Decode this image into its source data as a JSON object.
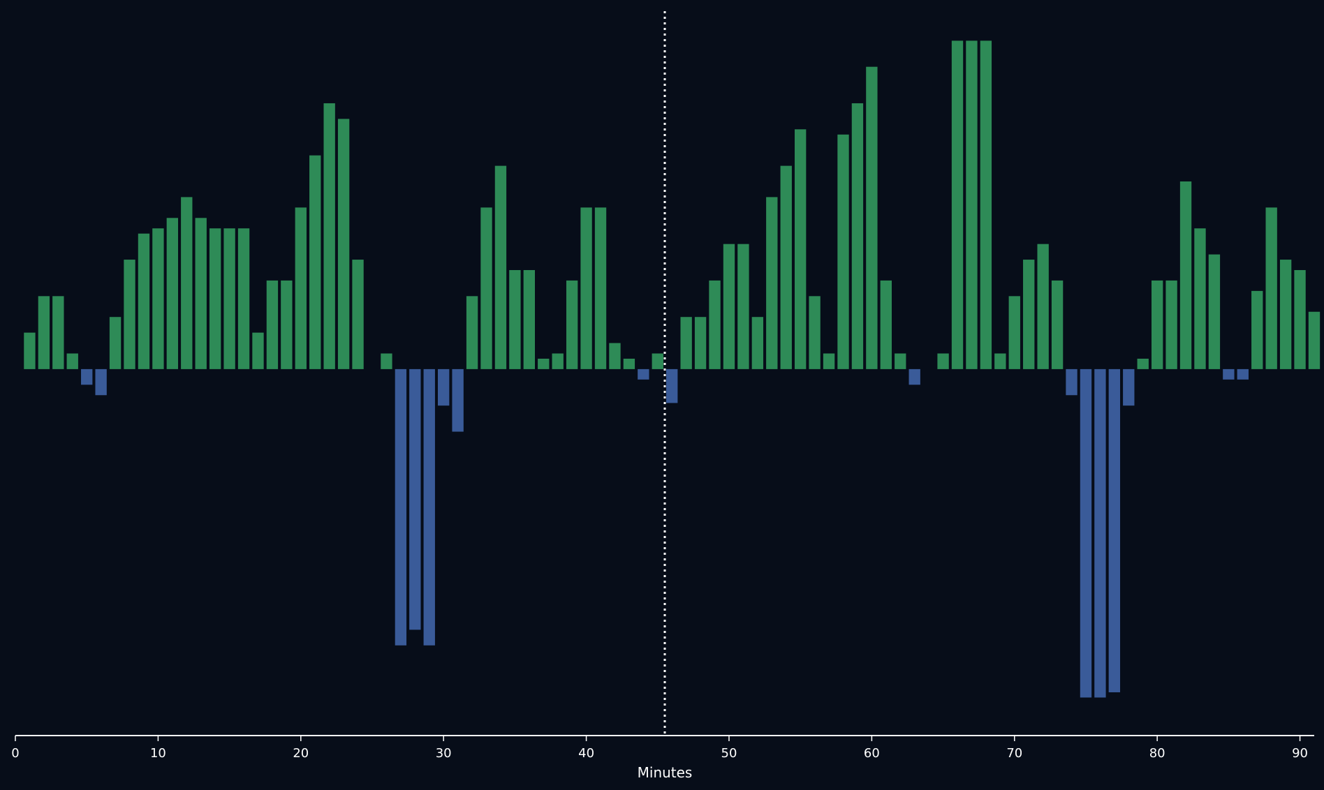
{
  "chart_data": {
    "type": "bar",
    "xlabel": "Minutes",
    "xlim": [
      0,
      91
    ],
    "ylim": [
      -0.703,
      0.684
    ],
    "x_ticks": [
      0,
      10,
      20,
      30,
      40,
      50,
      60,
      70,
      80,
      90
    ],
    "halftime_marker_x": 45.5,
    "grid": false,
    "legend": "none",
    "colors": {
      "positive": "#2e8b57",
      "negative": "#3a5b99",
      "background": "#070d19",
      "marker": "#ffffff"
    },
    "x": [
      1,
      2,
      3,
      4,
      5,
      6,
      7,
      8,
      9,
      10,
      11,
      12,
      13,
      14,
      15,
      16,
      17,
      18,
      19,
      20,
      21,
      22,
      23,
      24,
      25,
      26,
      27,
      28,
      29,
      30,
      31,
      32,
      33,
      34,
      35,
      36,
      37,
      38,
      39,
      40,
      41,
      42,
      43,
      44,
      45,
      46,
      47,
      48,
      49,
      50,
      51,
      52,
      53,
      54,
      55,
      56,
      57,
      58,
      59,
      60,
      61,
      62,
      63,
      64,
      65,
      66,
      67,
      68,
      69,
      70,
      71,
      72,
      73,
      74,
      75,
      76,
      77,
      78,
      79,
      80,
      81,
      82,
      83,
      84,
      85,
      86,
      87,
      88,
      89,
      90,
      91
    ],
    "values": [
      0.07,
      0.14,
      0.14,
      0.03,
      -0.03,
      -0.05,
      0.1,
      0.21,
      0.26,
      0.27,
      0.29,
      0.33,
      0.29,
      0.27,
      0.27,
      0.27,
      0.07,
      0.17,
      0.17,
      0.31,
      0.41,
      0.51,
      0.48,
      0.21,
      0,
      0.03,
      -0.53,
      -0.5,
      -0.53,
      -0.07,
      -0.12,
      0.14,
      0.31,
      0.39,
      0.19,
      0.19,
      0.02,
      0.03,
      0.17,
      0.31,
      0.31,
      0.05,
      0.02,
      -0.02,
      0.03,
      -0.065,
      0.1,
      0.1,
      0.17,
      0.24,
      0.24,
      0.1,
      0.33,
      0.39,
      0.46,
      0.14,
      0.03,
      0.45,
      0.51,
      0.58,
      0.17,
      0.03,
      -0.03,
      0,
      0.03,
      0.63,
      0.63,
      0.63,
      0.03,
      0.14,
      0.21,
      0.24,
      0.17,
      -0.05,
      -0.63,
      -0.63,
      -0.62,
      -0.07,
      0.02,
      0.17,
      0.17,
      0.36,
      0.27,
      0.22,
      -0.02,
      -0.02,
      0.15,
      0.31,
      0.21,
      0.19,
      0.11
    ]
  }
}
